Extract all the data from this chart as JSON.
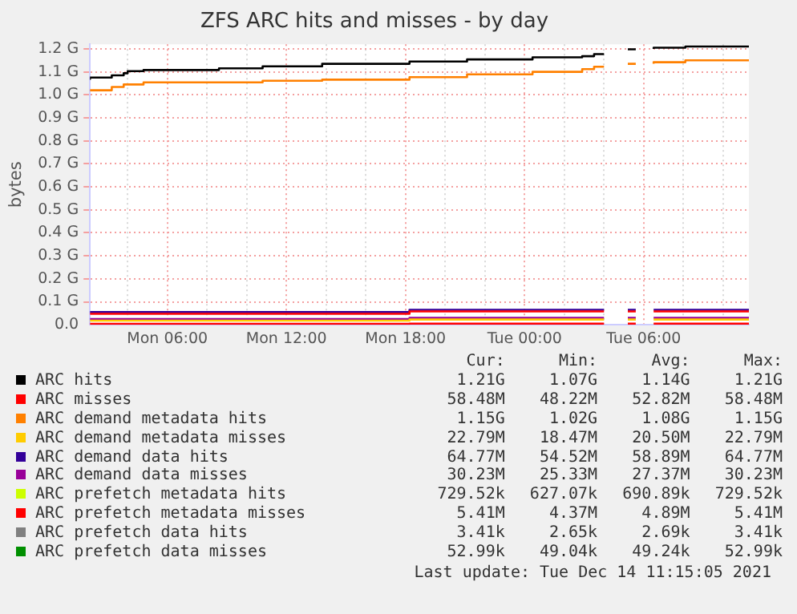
{
  "chart_data": {
    "type": "step",
    "title": "ZFS ARC hits and misses - by day",
    "ylabel": "bytes",
    "legend": "bottom",
    "grid": true,
    "x": [
      "2021-12-13T02:06",
      "2021-12-13T03:12",
      "2021-12-13T03:48",
      "2021-12-13T04:00",
      "2021-12-13T04:48",
      "2021-12-13T08:36",
      "2021-12-13T10:48",
      "2021-12-13T13:48",
      "2021-12-13T18:12",
      "2021-12-13T21:06",
      "2021-12-14T00:24",
      "2021-12-14T02:54",
      "2021-12-14T03:30",
      "2021-12-14T04:00",
      "2021-12-14T04:30",
      "2021-12-14T05:12",
      "2021-12-14T05:36",
      "2021-12-14T06:00",
      "2021-12-14T06:30",
      "2021-12-14T08:06",
      "2021-12-14T09:36",
      "2021-12-14T11:18"
    ],
    "xlim": [
      "2021-12-13T02:06",
      "2021-12-14T11:18"
    ],
    "xticks": [
      {
        "value": "2021-12-13T04:00",
        "label": null
      },
      {
        "value": "2021-12-13T06:00",
        "label": "Mon 06:00"
      },
      {
        "value": "2021-12-13T08:00",
        "label": null
      },
      {
        "value": "2021-12-13T10:00",
        "label": null
      },
      {
        "value": "2021-12-13T12:00",
        "label": "Mon 12:00"
      },
      {
        "value": "2021-12-13T14:00",
        "label": null
      },
      {
        "value": "2021-12-13T16:00",
        "label": null
      },
      {
        "value": "2021-12-13T18:00",
        "label": "Mon 18:00"
      },
      {
        "value": "2021-12-13T20:00",
        "label": null
      },
      {
        "value": "2021-12-13T22:00",
        "label": null
      },
      {
        "value": "2021-12-14T00:00",
        "label": "Tue 00:00"
      },
      {
        "value": "2021-12-14T02:00",
        "label": null
      },
      {
        "value": "2021-12-14T04:00",
        "label": null
      },
      {
        "value": "2021-12-14T06:00",
        "label": "Tue 06:00"
      },
      {
        "value": "2021-12-14T08:00",
        "label": null
      },
      {
        "value": "2021-12-14T10:00",
        "label": null
      }
    ],
    "ylim": [
      0,
      1.22
    ],
    "yticks": [
      {
        "value": 0,
        "label": "0.0"
      },
      {
        "value": 0.1,
        "label": "0.1 G"
      },
      {
        "value": 0.2,
        "label": "0.2 G"
      },
      {
        "value": 0.3,
        "label": "0.3 G"
      },
      {
        "value": 0.4,
        "label": "0.4 G"
      },
      {
        "value": 0.5,
        "label": "0.5 G"
      },
      {
        "value": 0.6,
        "label": "0.6 G"
      },
      {
        "value": 0.7,
        "label": "0.7 G"
      },
      {
        "value": 0.8,
        "label": "0.8 G"
      },
      {
        "value": 0.9,
        "label": "0.9 G"
      },
      {
        "value": 1.0,
        "label": "1.0 G"
      },
      {
        "value": 1.1,
        "label": "1.1 G"
      },
      {
        "value": 1.2,
        "label": "1.2 G"
      }
    ],
    "series": [
      {
        "name": "ARC hits",
        "color": "#000000",
        "values": [
          1.066,
          1.075,
          1.085,
          1.094,
          1.103,
          1.108,
          1.115,
          1.124,
          1.135,
          1.145,
          1.154,
          1.163,
          1.168,
          1.177,
          null,
          1.198,
          1.198,
          null,
          1.2,
          1.205,
          1.21,
          1.21
        ]
      },
      {
        "name": "ARC misses",
        "color": "#ff0000",
        "values": [
          0.048,
          0.048,
          0.048,
          0.048,
          0.048,
          0.048,
          0.048,
          0.048,
          0.048,
          0.058,
          0.058,
          0.058,
          0.058,
          0.058,
          null,
          0.058,
          0.058,
          null,
          0.058,
          0.058,
          0.058,
          0.058
        ]
      },
      {
        "name": "ARC demand metadata hits",
        "color": "#ff8000",
        "values": [
          1.02,
          1.02,
          1.034,
          1.045,
          1.045,
          1.054,
          1.054,
          1.061,
          1.066,
          1.077,
          1.089,
          1.1,
          1.112,
          1.122,
          null,
          1.135,
          1.135,
          null,
          1.135,
          1.142,
          1.15,
          1.15
        ]
      },
      {
        "name": "ARC demand metadata misses",
        "color": "#ffcc00",
        "values": [
          0.018,
          0.018,
          0.018,
          0.018,
          0.018,
          0.018,
          0.018,
          0.018,
          0.018,
          0.023,
          0.023,
          0.023,
          0.023,
          0.023,
          null,
          0.023,
          0.023,
          null,
          0.023,
          0.023,
          0.023,
          0.023
        ]
      },
      {
        "name": "ARC demand data hits",
        "color": "#330099",
        "values": [
          0.055,
          0.055,
          0.055,
          0.055,
          0.055,
          0.055,
          0.055,
          0.055,
          0.055,
          0.065,
          0.065,
          0.065,
          0.065,
          0.065,
          null,
          0.065,
          0.065,
          null,
          0.065,
          0.065,
          0.065,
          0.065
        ]
      },
      {
        "name": "ARC demand data misses",
        "color": "#990099",
        "values": [
          0.025,
          0.025,
          0.025,
          0.025,
          0.025,
          0.025,
          0.025,
          0.025,
          0.025,
          0.03,
          0.03,
          0.03,
          0.03,
          0.03,
          null,
          0.03,
          0.03,
          null,
          0.03,
          0.03,
          0.03,
          0.03
        ]
      },
      {
        "name": "ARC prefetch metadata hits",
        "color": "#ccff00",
        "values": [
          null,
          null,
          null,
          null,
          null,
          null,
          null,
          null,
          null,
          null,
          null,
          null,
          null,
          null,
          null,
          null,
          null,
          null,
          null,
          null,
          null,
          null
        ]
      },
      {
        "name": "ARC prefetch metadata misses",
        "color": "#ff0000",
        "values": [
          0.004,
          0.004,
          0.004,
          0.004,
          0.004,
          0.004,
          0.004,
          0.004,
          0.004,
          0.005,
          0.005,
          0.005,
          0.005,
          0.005,
          null,
          0.005,
          0.005,
          null,
          0.005,
          0.005,
          0.005,
          0.005
        ]
      },
      {
        "name": "ARC prefetch data hits",
        "color": "#808080",
        "values": [
          null,
          null,
          null,
          null,
          null,
          null,
          null,
          null,
          null,
          null,
          null,
          null,
          null,
          null,
          null,
          null,
          null,
          null,
          null,
          null,
          null,
          null
        ]
      },
      {
        "name": "ARC prefetch data misses",
        "color": "#008f00",
        "values": [
          null,
          null,
          null,
          null,
          null,
          null,
          null,
          null,
          null,
          null,
          null,
          null,
          null,
          null,
          null,
          null,
          null,
          null,
          null,
          null,
          null,
          null
        ]
      }
    ],
    "annotations": [
      "Cur:",
      "Min:",
      "Avg:",
      "Max:",
      "1.21G",
      "1.07G",
      "1.14G",
      "1.21G",
      "58.48M",
      "48.22M",
      "52.82M",
      "58.48M",
      "1.15G",
      "1.02G",
      "1.08G",
      "1.15G",
      "22.79M",
      "18.47M",
      "20.50M",
      "22.79M",
      "64.77M",
      "54.52M",
      "58.89M",
      "64.77M",
      "30.23M",
      "25.33M",
      "27.37M",
      "30.23M",
      "729.52k",
      "627.07k",
      "690.89k",
      "729.52k",
      "5.41M",
      "4.37M",
      "4.89M",
      "5.41M",
      "3.41k",
      "2.65k",
      "2.69k",
      "3.41k",
      "52.99k",
      "49.04k",
      "49.24k",
      "52.99k",
      "Last update: Tue Dec 14 11:15:05 2021"
    ]
  }
}
